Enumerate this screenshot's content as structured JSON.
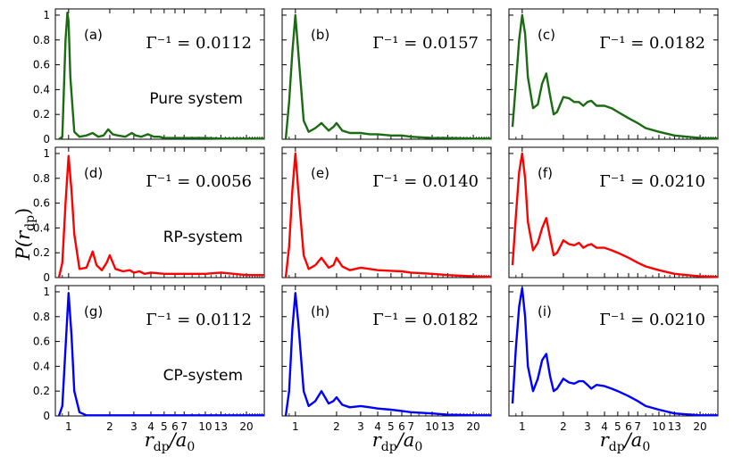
{
  "figure": {
    "ylabel_main": "P(r",
    "ylabel_sub": "dp",
    "ylabel_close": ")",
    "xlabel_main": "r",
    "xlabel_sub": "dp",
    "xlabel_rest": "/a",
    "xlabel_sub2": "0"
  },
  "chart_data": [
    {
      "type": "line",
      "panel": "(a)",
      "gamma_text": "Γ⁻¹ = 0.0112",
      "annotation": "Pure system",
      "color": "#1a6b12",
      "x": [
        0.85,
        0.9,
        0.95,
        0.98,
        1.0,
        1.03,
        1.1,
        1.2,
        1.35,
        1.5,
        1.65,
        1.8,
        1.95,
        2.1,
        2.3,
        2.6,
        2.9,
        3.1,
        3.4,
        3.8,
        4.2,
        4.6,
        5,
        6,
        7,
        10,
        13,
        20,
        27
      ],
      "y": [
        0,
        0.02,
        0.8,
        1.02,
        0.95,
        0.5,
        0.06,
        0.02,
        0.03,
        0.05,
        0.02,
        0.03,
        0.08,
        0.04,
        0.03,
        0.02,
        0.05,
        0.03,
        0.02,
        0.04,
        0.02,
        0.02,
        0.01,
        0.01,
        0.01,
        0.01,
        0.005,
        0.005,
        0.005
      ]
    },
    {
      "type": "line",
      "panel": "(b)",
      "gamma_text": "Γ⁻¹ = 0.0157",
      "annotation": "",
      "color": "#1a6b12",
      "x": [
        0.85,
        0.9,
        0.95,
        1.0,
        1.05,
        1.15,
        1.25,
        1.4,
        1.55,
        1.75,
        1.9,
        2.0,
        2.2,
        2.5,
        3.0,
        3.5,
        4,
        5,
        6,
        7,
        10,
        13,
        20,
        27
      ],
      "y": [
        0,
        0.3,
        0.7,
        1.0,
        0.7,
        0.15,
        0.06,
        0.09,
        0.13,
        0.07,
        0.1,
        0.13,
        0.07,
        0.05,
        0.05,
        0.04,
        0.04,
        0.03,
        0.03,
        0.02,
        0.01,
        0.01,
        0.005,
        0.005
      ]
    },
    {
      "type": "line",
      "panel": "(c)",
      "gamma_text": "Γ⁻¹ = 0.0182",
      "annotation": "",
      "color": "#1a6b12",
      "x": [
        0.85,
        0.9,
        0.95,
        1.0,
        1.05,
        1.1,
        1.2,
        1.3,
        1.4,
        1.5,
        1.6,
        1.7,
        1.8,
        2.0,
        2.2,
        2.4,
        2.6,
        2.8,
        3.0,
        3.2,
        3.5,
        4.0,
        4.5,
        5,
        6,
        7,
        8,
        10,
        13,
        20,
        27
      ],
      "y": [
        0.1,
        0.45,
        0.8,
        1.0,
        0.85,
        0.5,
        0.25,
        0.28,
        0.45,
        0.53,
        0.35,
        0.2,
        0.22,
        0.34,
        0.33,
        0.3,
        0.3,
        0.27,
        0.3,
        0.31,
        0.27,
        0.27,
        0.25,
        0.22,
        0.17,
        0.13,
        0.09,
        0.06,
        0.03,
        0.01,
        0.005
      ]
    },
    {
      "type": "line",
      "panel": "(d)",
      "gamma_text": "Γ⁻¹ = 0.0056",
      "annotation": "RP-system",
      "color": "#ff0000",
      "x": [
        0.85,
        0.9,
        0.95,
        1.0,
        1.05,
        1.1,
        1.2,
        1.35,
        1.5,
        1.6,
        1.75,
        1.9,
        2.0,
        2.2,
        2.5,
        2.8,
        3.0,
        3.3,
        3.6,
        4,
        5,
        6,
        7,
        10,
        13,
        20,
        27
      ],
      "y": [
        0,
        0.12,
        0.6,
        0.98,
        0.7,
        0.35,
        0.07,
        0.08,
        0.21,
        0.1,
        0.06,
        0.12,
        0.18,
        0.07,
        0.05,
        0.06,
        0.04,
        0.05,
        0.03,
        0.04,
        0.03,
        0.03,
        0.03,
        0.03,
        0.04,
        0.02,
        0.02
      ]
    },
    {
      "type": "line",
      "panel": "(e)",
      "gamma_text": "Γ⁻¹ = 0.0140",
      "annotation": "",
      "color": "#ff0000",
      "x": [
        0.85,
        0.9,
        0.95,
        1.0,
        1.05,
        1.15,
        1.25,
        1.4,
        1.55,
        1.75,
        1.9,
        2.0,
        2.2,
        2.5,
        3.0,
        3.5,
        4,
        5,
        6,
        7,
        10,
        13,
        20,
        27
      ],
      "y": [
        0,
        0.25,
        0.7,
        1.0,
        0.7,
        0.18,
        0.07,
        0.1,
        0.16,
        0.08,
        0.1,
        0.16,
        0.09,
        0.06,
        0.08,
        0.07,
        0.06,
        0.055,
        0.05,
        0.04,
        0.03,
        0.02,
        0.01,
        0.005
      ]
    },
    {
      "type": "line",
      "panel": "(f)",
      "gamma_text": "Γ⁻¹ = 0.0210",
      "annotation": "",
      "color": "#ff0000",
      "x": [
        0.85,
        0.9,
        0.95,
        1.0,
        1.05,
        1.1,
        1.2,
        1.3,
        1.4,
        1.5,
        1.6,
        1.7,
        1.8,
        2.0,
        2.2,
        2.4,
        2.6,
        2.8,
        3.0,
        3.2,
        3.5,
        4.0,
        4.5,
        5,
        6,
        7,
        8,
        10,
        13,
        20,
        27
      ],
      "y": [
        0.1,
        0.5,
        0.85,
        1.0,
        0.8,
        0.45,
        0.22,
        0.28,
        0.4,
        0.48,
        0.32,
        0.18,
        0.2,
        0.3,
        0.27,
        0.26,
        0.28,
        0.24,
        0.26,
        0.27,
        0.24,
        0.24,
        0.22,
        0.2,
        0.16,
        0.12,
        0.09,
        0.06,
        0.03,
        0.01,
        0.005
      ]
    },
    {
      "type": "line",
      "panel": "(g)",
      "gamma_text": "Γ⁻¹ = 0.0112",
      "annotation": "CP-system",
      "color": "#0000ff",
      "x": [
        0.85,
        0.9,
        0.95,
        1.0,
        1.05,
        1.1,
        1.2,
        1.35,
        1.5,
        2,
        3,
        5,
        10,
        20,
        27
      ],
      "y": [
        0,
        0.08,
        0.55,
        0.99,
        0.65,
        0.2,
        0.03,
        0.005,
        0.005,
        0.005,
        0.005,
        0.005,
        0.005,
        0.005,
        0.005
      ]
    },
    {
      "type": "line",
      "panel": "(h)",
      "gamma_text": "Γ⁻¹ = 0.0182",
      "annotation": "",
      "color": "#0000ff",
      "x": [
        0.85,
        0.9,
        0.95,
        1.0,
        1.05,
        1.15,
        1.25,
        1.4,
        1.55,
        1.75,
        1.9,
        2.0,
        2.2,
        2.5,
        3.0,
        3.5,
        4,
        5,
        6,
        7,
        10,
        13,
        20,
        27
      ],
      "y": [
        0,
        0.2,
        0.7,
        0.99,
        0.75,
        0.2,
        0.08,
        0.12,
        0.2,
        0.1,
        0.12,
        0.15,
        0.09,
        0.07,
        0.08,
        0.07,
        0.06,
        0.05,
        0.04,
        0.03,
        0.02,
        0.01,
        0.005,
        0.005
      ]
    },
    {
      "type": "line",
      "panel": "(i)",
      "gamma_text": "Γ⁻¹ = 0.0210",
      "annotation": "",
      "color": "#0000ff",
      "x": [
        0.85,
        0.9,
        0.95,
        1.0,
        1.05,
        1.1,
        1.2,
        1.3,
        1.4,
        1.5,
        1.6,
        1.7,
        1.8,
        2.0,
        2.2,
        2.4,
        2.6,
        2.8,
        3.0,
        3.2,
        3.5,
        4.0,
        4.5,
        5,
        6,
        7,
        8,
        10,
        13,
        20,
        27
      ],
      "y": [
        0.1,
        0.55,
        0.88,
        1.03,
        0.8,
        0.4,
        0.2,
        0.3,
        0.45,
        0.5,
        0.32,
        0.2,
        0.22,
        0.3,
        0.27,
        0.26,
        0.28,
        0.28,
        0.25,
        0.22,
        0.25,
        0.24,
        0.22,
        0.2,
        0.16,
        0.12,
        0.08,
        0.05,
        0.02,
        0.005,
        0.005
      ]
    }
  ],
  "axes": {
    "x_scale": "log",
    "xlim": [
      0.8,
      27
    ],
    "ylim": [
      0,
      1.05
    ],
    "x_major_ticks": [
      1,
      2,
      3,
      4,
      5,
      6,
      7,
      10,
      13,
      20
    ],
    "x_tick_labels": [
      "1",
      "2",
      "3",
      "4",
      "5",
      "6",
      "7",
      "10",
      "13",
      "20"
    ],
    "x_label_rows": [
      "bottom"
    ],
    "y_ticks": [
      0,
      0.2,
      0.4,
      0.6,
      0.8,
      1.0
    ],
    "y_tick_labels": [
      "0",
      "0.2",
      "0.4",
      "0.6",
      "0.8",
      "1"
    ],
    "grid": false
  }
}
